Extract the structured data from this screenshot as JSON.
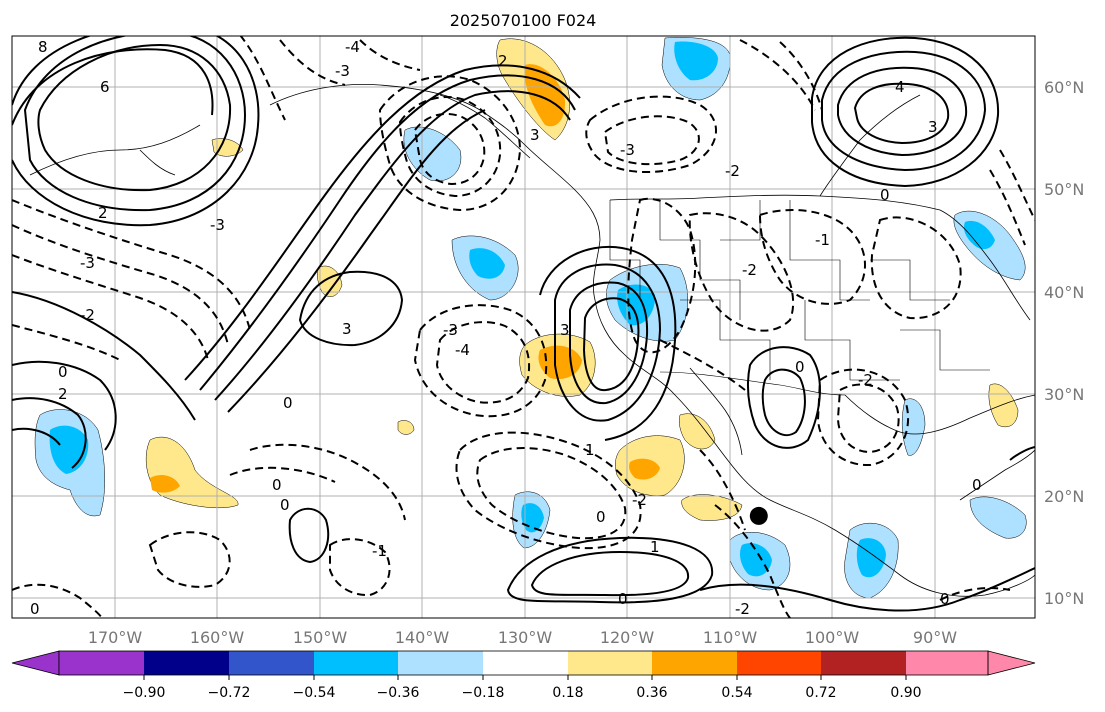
{
  "title": "2025070100 F024",
  "map": {
    "lat_labels": [
      "60°N",
      "50°N",
      "40°N",
      "30°N",
      "20°N",
      "10°N"
    ],
    "lon_labels": [
      "170°W",
      "160°W",
      "150°W",
      "140°W",
      "130°W",
      "120°W",
      "110°W",
      "100°W",
      "90°W"
    ],
    "extent": {
      "lon_min": -180,
      "lon_max": -80,
      "lat_min": 8,
      "lat_max": 65
    },
    "gridline_color": "#b0b0b0",
    "contour_color": "#000000",
    "marker": {
      "lon": -107,
      "lat": 18,
      "color": "#000000"
    }
  },
  "colorbar": {
    "ticks": [
      "−0.90",
      "−0.72",
      "−0.54",
      "−0.36",
      "−0.18",
      "0.18",
      "0.36",
      "0.54",
      "0.72",
      "0.90"
    ],
    "colors": [
      "#9933cc",
      "#00008b",
      "#3355cc",
      "#00bfff",
      "#aee0ff",
      "#ffffff",
      "#ffe88c",
      "#ffa500",
      "#ff4500",
      "#b22222",
      "#ff88aa"
    ]
  },
  "contour_labels": [
    "8",
    "6",
    "3",
    "4",
    "2",
    "1",
    "0",
    "-1",
    "-2",
    "-3",
    "-4"
  ]
}
